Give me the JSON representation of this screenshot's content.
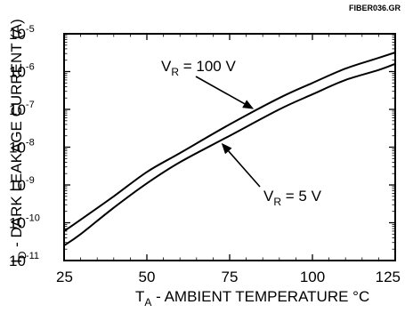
{
  "figure_id": "FIBER036.GR",
  "chart_data": {
    "type": "line",
    "title": "",
    "xlabel": {
      "main": "T",
      "sub": "A",
      "rest": " - AMBIENT TEMPERATURE  °C"
    },
    "ylabel": {
      "main": "I",
      "sub": "D",
      "rest": " - DARK LEAKAGE CURRENT (A)"
    },
    "xlim": [
      25,
      125
    ],
    "ylim_log10": [
      -11,
      -5
    ],
    "y_scale": "log",
    "x_ticks": [
      25,
      50,
      75,
      100,
      125
    ],
    "y_ticks": [
      {
        "base": "10",
        "exp": "-5"
      },
      {
        "base": "10",
        "exp": "-6"
      },
      {
        "base": "10",
        "exp": "-7"
      },
      {
        "base": "10",
        "exp": "-8"
      },
      {
        "base": "10",
        "exp": "-9"
      },
      {
        "base": "10",
        "exp": "-10"
      },
      {
        "base": "10",
        "exp": "-11"
      }
    ],
    "grid": false,
    "series": [
      {
        "name": "VR = 100 V",
        "x": [
          25,
          30,
          40,
          50,
          60,
          75,
          90,
          100,
          110,
          120,
          125
        ],
        "y": [
          6e-11,
          1.2e-10,
          5e-10,
          2.2e-09,
          7e-09,
          4e-08,
          2e-07,
          5e-07,
          1.2e-06,
          2.3e-06,
          3.2e-06
        ]
      },
      {
        "name": "VR = 5 V",
        "x": [
          25,
          30,
          40,
          50,
          60,
          75,
          90,
          100,
          110,
          120,
          125
        ],
        "y": [
          2.5e-11,
          5e-11,
          2.5e-10,
          1.1e-09,
          4e-09,
          2e-08,
          1e-07,
          2.5e-07,
          6e-07,
          1.1e-06,
          1.6e-06
        ]
      }
    ],
    "annotations": [
      {
        "label": {
          "main": "V",
          "sub": "R",
          "rest": " = 100 V"
        },
        "series": 0,
        "at_x": 83
      },
      {
        "label": {
          "main": "V",
          "sub": "R",
          "rest": " = 5 V"
        },
        "series": 1,
        "at_x": 72
      }
    ]
  }
}
